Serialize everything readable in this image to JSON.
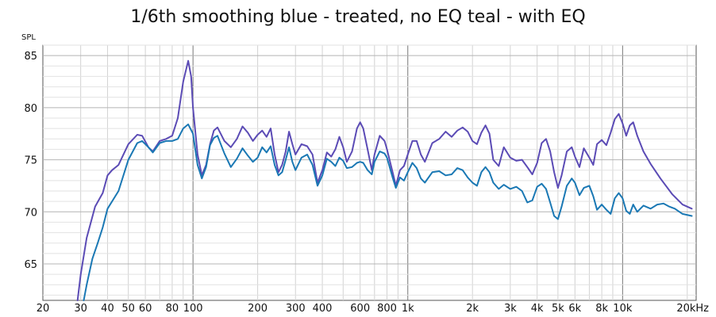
{
  "chart_data": {
    "type": "line",
    "title": "1/6th smoothing blue - treated, no EQ teal - with EQ",
    "ylabel": "SPL",
    "xlabel": "",
    "x_scale": "log",
    "xlim": [
      20,
      22000
    ],
    "ylim": [
      61.5,
      86
    ],
    "grid": true,
    "y_ticks": [
      65,
      70,
      75,
      80,
      85
    ],
    "x_ticks": [
      {
        "value": 20,
        "label": "20"
      },
      {
        "value": 30,
        "label": "30"
      },
      {
        "value": 40,
        "label": "40"
      },
      {
        "value": 50,
        "label": "50"
      },
      {
        "value": 60,
        "label": "60"
      },
      {
        "value": 80,
        "label": "80"
      },
      {
        "value": 100,
        "label": "100"
      },
      {
        "value": 200,
        "label": "200"
      },
      {
        "value": 300,
        "label": "300"
      },
      {
        "value": 400,
        "label": "400"
      },
      {
        "value": 600,
        "label": "600"
      },
      {
        "value": 800,
        "label": "800"
      },
      {
        "value": 1000,
        "label": "1k"
      },
      {
        "value": 2000,
        "label": "2k"
      },
      {
        "value": 3000,
        "label": "3k"
      },
      {
        "value": 4000,
        "label": "4k"
      },
      {
        "value": 5000,
        "label": "5k"
      },
      {
        "value": 6000,
        "label": "6k"
      },
      {
        "value": 8000,
        "label": "8k"
      },
      {
        "value": 10000,
        "label": "10k"
      },
      {
        "value": 20000,
        "label": "20kHz"
      }
    ],
    "series": [
      {
        "color": "#5b4bb5",
        "points": [
          [
            29,
            61.5
          ],
          [
            30,
            64
          ],
          [
            32,
            67.5
          ],
          [
            35,
            70.5
          ],
          [
            38,
            71.8
          ],
          [
            40,
            73.5
          ],
          [
            42,
            74
          ],
          [
            45,
            74.5
          ],
          [
            50,
            76.5
          ],
          [
            55,
            77.4
          ],
          [
            58,
            77.3
          ],
          [
            62,
            76.2
          ],
          [
            65,
            75.8
          ],
          [
            70,
            76.8
          ],
          [
            75,
            77
          ],
          [
            80,
            77.3
          ],
          [
            85,
            79
          ],
          [
            90,
            82.5
          ],
          [
            95,
            84.5
          ],
          [
            98,
            83
          ],
          [
            100,
            80
          ],
          [
            105,
            75.5
          ],
          [
            110,
            73.5
          ],
          [
            115,
            74.5
          ],
          [
            120,
            76.5
          ],
          [
            125,
            77.8
          ],
          [
            130,
            78.1
          ],
          [
            140,
            76.8
          ],
          [
            150,
            76.2
          ],
          [
            160,
            77
          ],
          [
            170,
            78.2
          ],
          [
            180,
            77.6
          ],
          [
            190,
            76.8
          ],
          [
            200,
            77.4
          ],
          [
            210,
            77.8
          ],
          [
            220,
            77.2
          ],
          [
            230,
            78
          ],
          [
            240,
            75.5
          ],
          [
            250,
            73.8
          ],
          [
            260,
            74.5
          ],
          [
            270,
            75.8
          ],
          [
            280,
            77.7
          ],
          [
            290,
            76.5
          ],
          [
            300,
            75.5
          ],
          [
            320,
            76.5
          ],
          [
            340,
            76.3
          ],
          [
            360,
            75.5
          ],
          [
            380,
            72.8
          ],
          [
            400,
            74
          ],
          [
            420,
            75.7
          ],
          [
            440,
            75.3
          ],
          [
            460,
            76
          ],
          [
            480,
            77.2
          ],
          [
            500,
            76.2
          ],
          [
            520,
            74.8
          ],
          [
            550,
            75.8
          ],
          [
            580,
            78
          ],
          [
            600,
            78.6
          ],
          [
            620,
            78
          ],
          [
            650,
            76
          ],
          [
            680,
            74
          ],
          [
            700,
            75.5
          ],
          [
            740,
            77.3
          ],
          [
            780,
            76.8
          ],
          [
            800,
            76
          ],
          [
            850,
            73.8
          ],
          [
            880,
            72.5
          ],
          [
            920,
            74
          ],
          [
            960,
            74.4
          ],
          [
            1000,
            75.5
          ],
          [
            1050,
            76.8
          ],
          [
            1100,
            76.8
          ],
          [
            1150,
            75.5
          ],
          [
            1200,
            74.8
          ],
          [
            1300,
            76.6
          ],
          [
            1400,
            77
          ],
          [
            1500,
            77.7
          ],
          [
            1600,
            77.2
          ],
          [
            1700,
            77.8
          ],
          [
            1800,
            78.1
          ],
          [
            1900,
            77.7
          ],
          [
            2000,
            76.8
          ],
          [
            2100,
            76.5
          ],
          [
            2200,
            77.6
          ],
          [
            2300,
            78.3
          ],
          [
            2400,
            77.5
          ],
          [
            2500,
            75
          ],
          [
            2650,
            74.4
          ],
          [
            2800,
            76.2
          ],
          [
            3000,
            75.2
          ],
          [
            3200,
            74.9
          ],
          [
            3400,
            75
          ],
          [
            3600,
            74.3
          ],
          [
            3800,
            73.6
          ],
          [
            4000,
            74.7
          ],
          [
            4200,
            76.6
          ],
          [
            4400,
            77
          ],
          [
            4600,
            75.8
          ],
          [
            4800,
            73.8
          ],
          [
            5000,
            72.3
          ],
          [
            5200,
            73.5
          ],
          [
            5500,
            75.8
          ],
          [
            5800,
            76.2
          ],
          [
            6000,
            75.3
          ],
          [
            6300,
            74.3
          ],
          [
            6600,
            76.1
          ],
          [
            7000,
            75.2
          ],
          [
            7300,
            74.5
          ],
          [
            7600,
            76.5
          ],
          [
            8000,
            76.9
          ],
          [
            8400,
            76.4
          ],
          [
            8800,
            77.6
          ],
          [
            9200,
            78.9
          ],
          [
            9600,
            79.4
          ],
          [
            10000,
            78.5
          ],
          [
            10400,
            77.3
          ],
          [
            10800,
            78.3
          ],
          [
            11200,
            78.6
          ],
          [
            11700,
            77.3
          ],
          [
            12500,
            75.8
          ],
          [
            13500,
            74.6
          ],
          [
            15000,
            73.2
          ],
          [
            17000,
            71.7
          ],
          [
            19000,
            70.7
          ],
          [
            21000,
            70.3
          ]
        ]
      },
      {
        "color": "#1a78b4",
        "points": [
          [
            31,
            61.5
          ],
          [
            32,
            63
          ],
          [
            34,
            65.5
          ],
          [
            36,
            67
          ],
          [
            38,
            68.5
          ],
          [
            40,
            70.3
          ],
          [
            42,
            71
          ],
          [
            45,
            72
          ],
          [
            50,
            75
          ],
          [
            55,
            76.6
          ],
          [
            58,
            76.8
          ],
          [
            62,
            76.2
          ],
          [
            65,
            75.7
          ],
          [
            70,
            76.6
          ],
          [
            75,
            76.8
          ],
          [
            80,
            76.8
          ],
          [
            85,
            77
          ],
          [
            90,
            78
          ],
          [
            95,
            78.4
          ],
          [
            100,
            77.5
          ],
          [
            105,
            74.5
          ],
          [
            110,
            73.2
          ],
          [
            115,
            74.3
          ],
          [
            120,
            76.4
          ],
          [
            125,
            77.1
          ],
          [
            130,
            77.3
          ],
          [
            140,
            75.6
          ],
          [
            150,
            74.3
          ],
          [
            160,
            75.1
          ],
          [
            170,
            76.1
          ],
          [
            180,
            75.4
          ],
          [
            190,
            74.8
          ],
          [
            200,
            75.2
          ],
          [
            210,
            76.2
          ],
          [
            220,
            75.7
          ],
          [
            230,
            76.3
          ],
          [
            240,
            74.5
          ],
          [
            250,
            73.5
          ],
          [
            260,
            73.8
          ],
          [
            270,
            75
          ],
          [
            280,
            76.2
          ],
          [
            290,
            74.8
          ],
          [
            300,
            74
          ],
          [
            320,
            75.2
          ],
          [
            340,
            75.5
          ],
          [
            360,
            74.5
          ],
          [
            380,
            72.5
          ],
          [
            400,
            73.5
          ],
          [
            420,
            75.1
          ],
          [
            440,
            74.8
          ],
          [
            460,
            74.4
          ],
          [
            480,
            75.2
          ],
          [
            500,
            74.9
          ],
          [
            520,
            74.2
          ],
          [
            550,
            74.3
          ],
          [
            580,
            74.7
          ],
          [
            600,
            74.8
          ],
          [
            620,
            74.7
          ],
          [
            650,
            74
          ],
          [
            680,
            73.6
          ],
          [
            700,
            74.8
          ],
          [
            740,
            75.8
          ],
          [
            780,
            75.6
          ],
          [
            800,
            75.2
          ],
          [
            850,
            73.3
          ],
          [
            880,
            72.3
          ],
          [
            920,
            73.3
          ],
          [
            960,
            73
          ],
          [
            1000,
            73.8
          ],
          [
            1050,
            74.7
          ],
          [
            1100,
            74.2
          ],
          [
            1150,
            73.2
          ],
          [
            1200,
            72.8
          ],
          [
            1300,
            73.8
          ],
          [
            1400,
            73.9
          ],
          [
            1500,
            73.5
          ],
          [
            1600,
            73.6
          ],
          [
            1700,
            74.2
          ],
          [
            1800,
            74
          ],
          [
            1900,
            73.3
          ],
          [
            2000,
            72.8
          ],
          [
            2100,
            72.5
          ],
          [
            2200,
            73.8
          ],
          [
            2300,
            74.3
          ],
          [
            2400,
            73.8
          ],
          [
            2500,
            72.8
          ],
          [
            2650,
            72.2
          ],
          [
            2800,
            72.6
          ],
          [
            3000,
            72.2
          ],
          [
            3200,
            72.4
          ],
          [
            3400,
            72
          ],
          [
            3600,
            70.9
          ],
          [
            3800,
            71.1
          ],
          [
            4000,
            72.4
          ],
          [
            4200,
            72.7
          ],
          [
            4400,
            72.2
          ],
          [
            4600,
            70.9
          ],
          [
            4800,
            69.6
          ],
          [
            5000,
            69.3
          ],
          [
            5200,
            70.5
          ],
          [
            5500,
            72.5
          ],
          [
            5800,
            73.2
          ],
          [
            6000,
            72.8
          ],
          [
            6300,
            71.6
          ],
          [
            6600,
            72.3
          ],
          [
            7000,
            72.5
          ],
          [
            7300,
            71.5
          ],
          [
            7600,
            70.2
          ],
          [
            8000,
            70.7
          ],
          [
            8400,
            70.2
          ],
          [
            8800,
            69.8
          ],
          [
            9200,
            71.3
          ],
          [
            9600,
            71.8
          ],
          [
            10000,
            71.3
          ],
          [
            10400,
            70.1
          ],
          [
            10800,
            69.8
          ],
          [
            11200,
            70.7
          ],
          [
            11700,
            70
          ],
          [
            12500,
            70.6
          ],
          [
            13500,
            70.3
          ],
          [
            14500,
            70.7
          ],
          [
            15500,
            70.8
          ],
          [
            16500,
            70.5
          ],
          [
            17500,
            70.3
          ],
          [
            19000,
            69.8
          ],
          [
            21000,
            69.6
          ]
        ]
      }
    ]
  }
}
